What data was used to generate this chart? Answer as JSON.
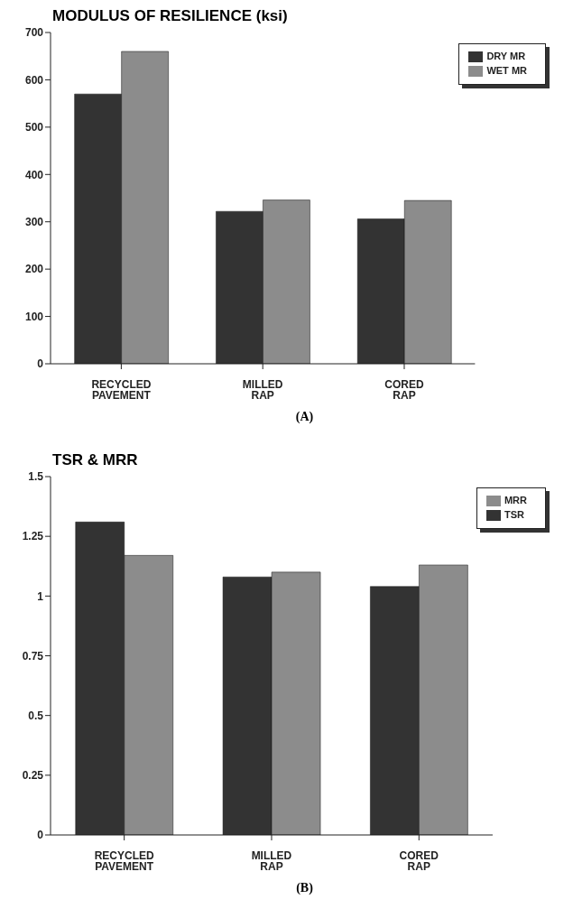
{
  "chart_data": [
    {
      "type": "bar",
      "title": "MODULUS OF RESILIENCE (ksi)",
      "xlabel": "(A)",
      "categories": [
        "RECYCLED PAVEMENT",
        "MILLED RAP",
        "CORED RAP"
      ],
      "series": [
        {
          "name": "DRY MR",
          "color": "#333333",
          "values": [
            570,
            322,
            306
          ]
        },
        {
          "name": "WET MR",
          "color": "#8c8c8c",
          "values": [
            660,
            346,
            345
          ]
        }
      ],
      "ylim": [
        0,
        700
      ],
      "yticks": [
        0,
        100,
        200,
        300,
        400,
        500,
        600,
        700
      ],
      "grid": false,
      "legend": "top right"
    },
    {
      "type": "bar",
      "title": "TSR & MRR",
      "xlabel": "(B)",
      "categories": [
        "RECYCLED PAVEMENT",
        "MILLED RAP",
        "CORED RAP"
      ],
      "series": [
        {
          "name": "TSR",
          "color": "#333333",
          "values": [
            1.31,
            1.08,
            1.04
          ]
        },
        {
          "name": "MRR",
          "color": "#8c8c8c",
          "values": [
            1.17,
            1.1,
            1.13
          ]
        }
      ],
      "ylim": [
        0,
        1.5
      ],
      "yticks": [
        0,
        0.25,
        0.5,
        0.75,
        1,
        1.25,
        1.5
      ],
      "grid": false,
      "legend": "top right"
    }
  ]
}
